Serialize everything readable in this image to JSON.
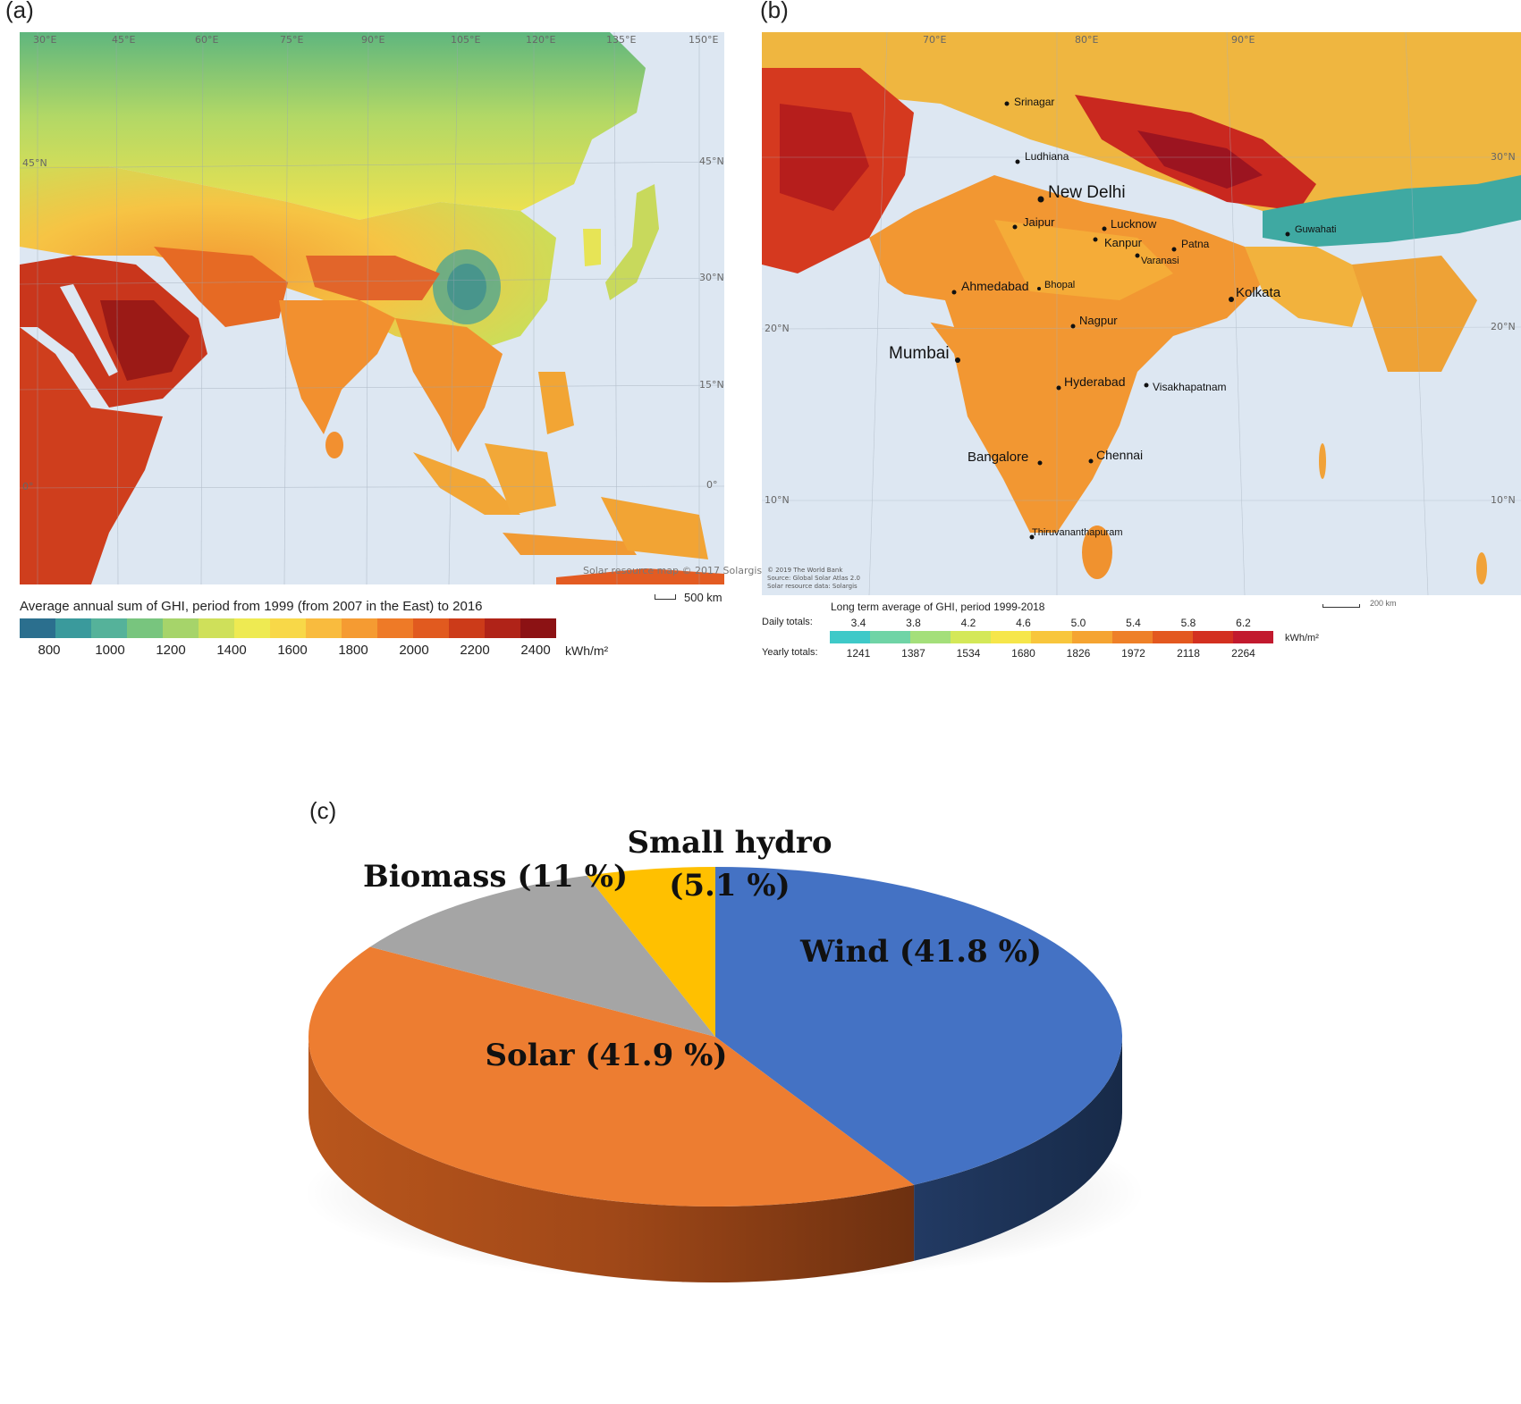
{
  "panel_a": {
    "label": "(a)",
    "longitude_labels": [
      "30°E",
      "45°E",
      "60°E",
      "75°E",
      "90°E",
      "105°E",
      "120°E",
      "135°E",
      "150°E"
    ],
    "latitude_labels": [
      "45°N",
      "30°N",
      "15°N",
      "0°"
    ],
    "credit": "Solar resource map © 2017 Solargis",
    "legend_title": "Average annual sum of GHI, period from 1999 (from 2007 in the East) to 2016",
    "legend_ticks": [
      "800",
      "1000",
      "1200",
      "1400",
      "1600",
      "1800",
      "2000",
      "2200",
      "2400"
    ],
    "legend_unit": "kWh/m²",
    "scale": "500 km",
    "legend_colors": [
      "#2b6f8e",
      "#3a9a9c",
      "#55b29a",
      "#78c57e",
      "#a6d46a",
      "#cfe05a",
      "#eeea52",
      "#f8d848",
      "#f9bb3e",
      "#f59b32",
      "#ee7a27",
      "#e15a1f",
      "#cc3b19",
      "#b02318",
      "#8c1214"
    ]
  },
  "panel_b": {
    "label": "(b)",
    "cities": [
      "Srinagar",
      "Ludhiana",
      "New Delhi",
      "Jaipur",
      "Lucknow",
      "Kanpur",
      "Patna",
      "Varanasi",
      "Guwahati",
      "Ahmedabad",
      "Bhopal",
      "Kolkata",
      "Nagpur",
      "Mumbai",
      "Hyderabad",
      "Visakhapatnam",
      "Bangalore",
      "Chennai",
      "Thiruvananthapuram"
    ],
    "longitude_labels": [
      "70°E",
      "80°E",
      "90°E"
    ],
    "latitude_labels": [
      "30°N",
      "20°N",
      "10°N"
    ],
    "credits": [
      "© 2019 The World Bank",
      "Source: Global Solar Atlas 2.0",
      "Solar resource data: Solargis"
    ],
    "legend_title": "Long term average of GHI, period 1999-2018",
    "daily_label": "Daily totals:",
    "daily_ticks": [
      "3.4",
      "3.8",
      "4.2",
      "4.6",
      "5.0",
      "5.4",
      "5.8",
      "6.2"
    ],
    "yearly_label": "Yearly totals:",
    "yearly_ticks": [
      "1241",
      "1387",
      "1534",
      "1680",
      "1826",
      "1972",
      "2118",
      "2264"
    ],
    "legend_unit": "kWh/m²",
    "scale": "200 km",
    "legend_colors": [
      "#3ec9c8",
      "#6fd4a6",
      "#a4df7a",
      "#d4e858",
      "#f6e64a",
      "#f8c63c",
      "#f5a431",
      "#ee8028",
      "#e3581f",
      "#d33020",
      "#c21a2e"
    ]
  },
  "panel_c": {
    "label": "(c)",
    "chart_data": {
      "type": "pie",
      "title": "",
      "slices": [
        {
          "name": "Wind",
          "value": 41.8,
          "label": "Wind (41.8 %)",
          "color": "#4472c4"
        },
        {
          "name": "Solar",
          "value": 41.9,
          "label": "Solar (41.9 %)",
          "color": "#ed7d31"
        },
        {
          "name": "Biomass",
          "value": 11,
          "label": "Biomass (11 %)",
          "color": "#a5a5a5"
        },
        {
          "name": "Small hydro",
          "value": 5.1,
          "label_line1": "Small hydro",
          "label_line2": "(5.1 %)",
          "color": "#ffc000"
        }
      ],
      "style": "3d"
    }
  }
}
